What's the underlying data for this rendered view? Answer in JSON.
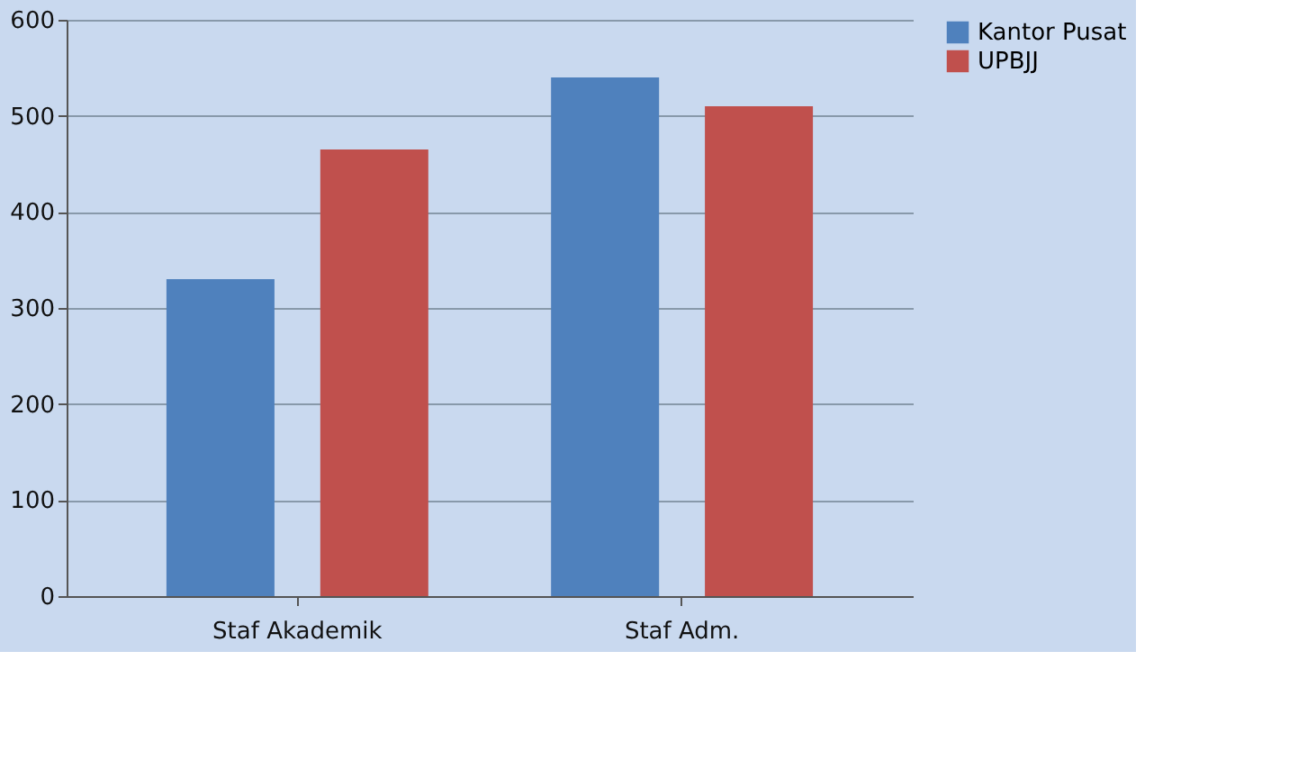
{
  "chart_data": {
    "type": "bar",
    "categories": [
      "Staf Akademik",
      "Staf Adm."
    ],
    "series": [
      {
        "name": "Kantor Pusat",
        "color": "#4f81bd",
        "values": [
          330,
          540
        ]
      },
      {
        "name": "UPBJJ",
        "color": "#c0504d",
        "values": [
          465,
          510
        ]
      }
    ],
    "ylim": [
      0,
      600
    ],
    "yticks": [
      0,
      100,
      200,
      300,
      400,
      500,
      600
    ],
    "grid": "y",
    "legend": "right"
  }
}
